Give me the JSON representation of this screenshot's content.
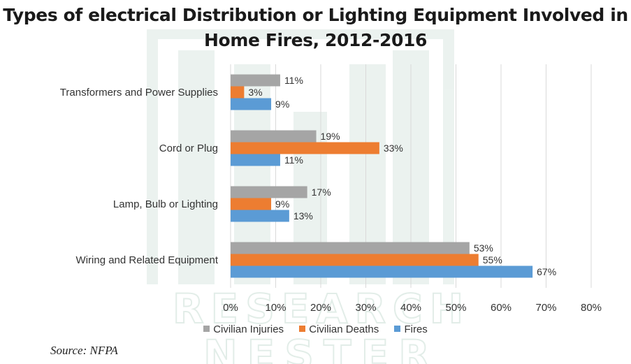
{
  "colors": {
    "civilian_injuries": "#a5a5a5",
    "civilian_deaths": "#ed7d31",
    "fires": "#5b9bd5",
    "watermark": "#2f7d5b"
  },
  "watermark": {
    "line1": "RESEARCH",
    "line2": "NESTER"
  },
  "source": "Source: NFPA",
  "chart_data": {
    "type": "bar",
    "orientation": "horizontal",
    "title": "Types of electrical Distribution or Lighting Equipment Involved in Home Fires, 2012-2016",
    "categories": [
      "Transformers and Power Supplies",
      "Cord or Plug",
      "Lamp, Bulb or Lighting",
      "Wiring and Related Equipment"
    ],
    "series": [
      {
        "name": "Civilian Injuries",
        "values": [
          11,
          19,
          17,
          53
        ],
        "labels": [
          "11%",
          "19%",
          "17%",
          "53%"
        ]
      },
      {
        "name": "Civilian Deaths",
        "values": [
          3,
          33,
          9,
          55
        ],
        "labels": [
          "3%",
          "33%",
          "9%",
          "55%"
        ]
      },
      {
        "name": "Fires",
        "values": [
          9,
          11,
          13,
          67
        ],
        "labels": [
          "9%",
          "11%",
          "13%",
          "67%"
        ]
      }
    ],
    "xlim": [
      0,
      80
    ],
    "x_ticks": [
      0,
      10,
      20,
      30,
      40,
      50,
      60,
      70,
      80
    ],
    "x_tick_labels": [
      "0%",
      "10%",
      "20%",
      "30%",
      "40%",
      "50%",
      "60%",
      "70%",
      "80%"
    ],
    "grid": "vertical",
    "legend": "bottom"
  }
}
